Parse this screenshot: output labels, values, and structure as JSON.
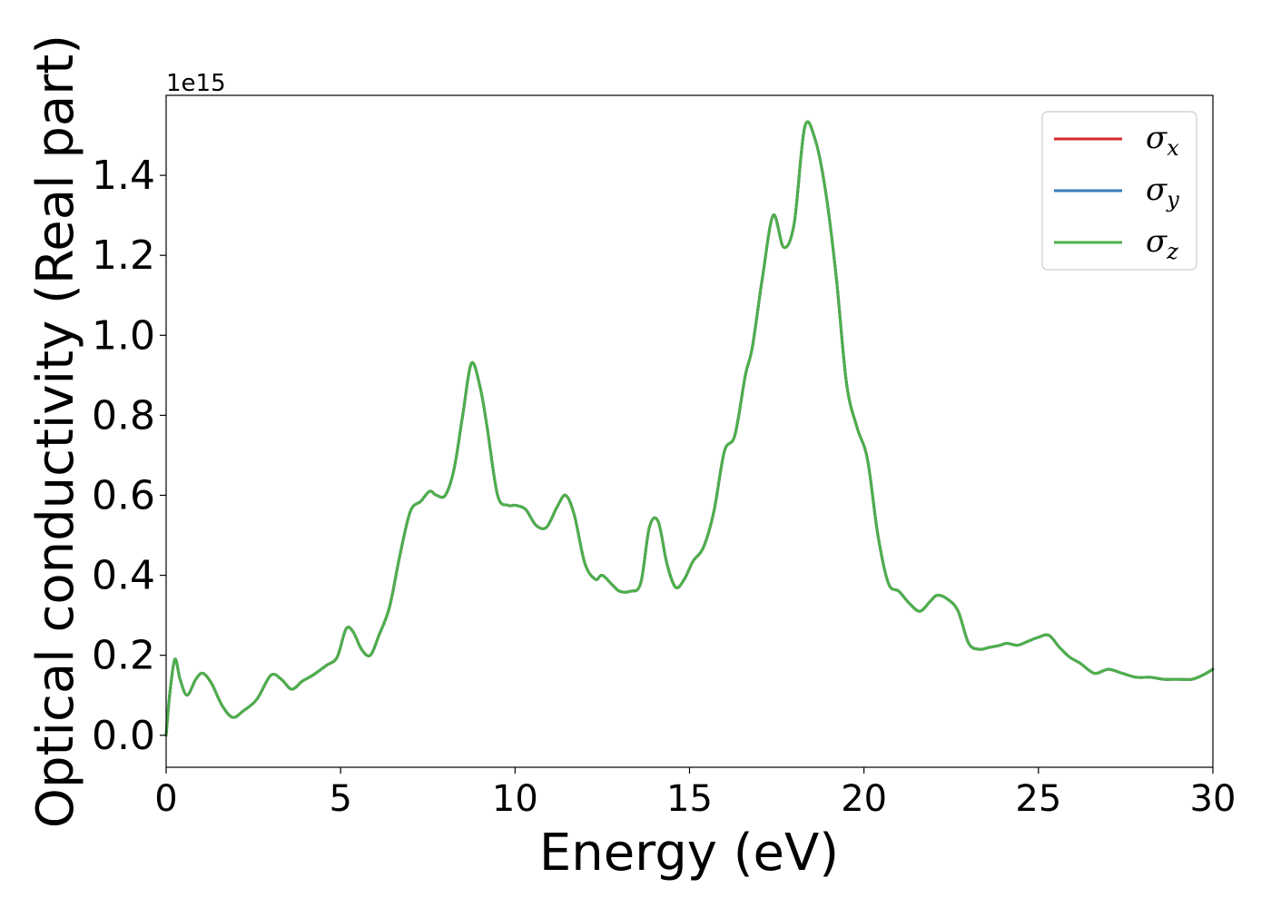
{
  "chart_data": {
    "type": "line",
    "title": "",
    "xlabel": "Energy (eV)",
    "ylabel": "Optical conductivity (Real part)",
    "offset_text": "1e15",
    "y_scale_factor": 1000000000000000.0,
    "xlim": [
      0,
      30
    ],
    "ylim": [
      -0.08,
      1.6
    ],
    "x_ticks": [
      0,
      5,
      10,
      15,
      20,
      25,
      30
    ],
    "x_tick_labels": [
      "0",
      "5",
      "10",
      "15",
      "20",
      "25",
      "30"
    ],
    "y_ticks": [
      0.0,
      0.2,
      0.4,
      0.6,
      0.8,
      1.0,
      1.2,
      1.4
    ],
    "y_tick_labels": [
      "0.0",
      "0.2",
      "0.4",
      "0.6",
      "0.8",
      "1.0",
      "1.2",
      "1.4"
    ],
    "grid": false,
    "legend_placement": "top-right",
    "x": [
      0,
      0.1,
      0.25,
      0.4,
      0.6,
      0.85,
      1.05,
      1.3,
      1.6,
      1.9,
      2.2,
      2.6,
      3.0,
      3.3,
      3.6,
      3.9,
      4.2,
      4.6,
      4.9,
      5.15,
      5.35,
      5.6,
      5.85,
      6.1,
      6.4,
      6.7,
      7.0,
      7.3,
      7.55,
      7.75,
      8.0,
      8.25,
      8.5,
      8.75,
      9.0,
      9.2,
      9.5,
      9.8,
      10.0,
      10.3,
      10.6,
      10.9,
      11.2,
      11.45,
      11.7,
      12.0,
      12.3,
      12.5,
      12.8,
      13.0,
      13.3,
      13.6,
      13.85,
      14.1,
      14.35,
      14.6,
      14.85,
      15.1,
      15.4,
      15.7,
      16.0,
      16.3,
      16.6,
      16.8,
      17.1,
      17.4,
      17.7,
      18.0,
      18.3,
      18.6,
      18.9,
      19.2,
      19.5,
      19.8,
      20.1,
      20.4,
      20.7,
      21.0,
      21.3,
      21.6,
      21.9,
      22.1,
      22.4,
      22.7,
      23.0,
      23.3,
      23.6,
      23.9,
      24.1,
      24.4,
      24.7,
      25.0,
      25.3,
      25.6,
      25.9,
      26.2,
      26.6,
      27.0,
      27.4,
      27.8,
      28.2,
      28.6,
      29.0,
      29.4,
      29.7,
      30.0
    ],
    "series": [
      {
        "name": "σ_x",
        "name_main": "σ",
        "name_sub": "x",
        "color": "#d62728",
        "values": [
          0.0,
          0.1,
          0.19,
          0.14,
          0.1,
          0.14,
          0.155,
          0.13,
          0.075,
          0.045,
          0.06,
          0.09,
          0.15,
          0.14,
          0.115,
          0.135,
          0.15,
          0.175,
          0.195,
          0.265,
          0.26,
          0.215,
          0.2,
          0.25,
          0.32,
          0.45,
          0.56,
          0.585,
          0.61,
          0.6,
          0.6,
          0.665,
          0.8,
          0.93,
          0.87,
          0.77,
          0.6,
          0.575,
          0.575,
          0.565,
          0.525,
          0.52,
          0.57,
          0.6,
          0.55,
          0.43,
          0.39,
          0.4,
          0.375,
          0.36,
          0.36,
          0.38,
          0.52,
          0.535,
          0.43,
          0.37,
          0.39,
          0.435,
          0.47,
          0.56,
          0.71,
          0.75,
          0.9,
          0.97,
          1.15,
          1.3,
          1.22,
          1.28,
          1.52,
          1.49,
          1.36,
          1.15,
          0.88,
          0.77,
          0.69,
          0.5,
          0.38,
          0.36,
          0.33,
          0.31,
          0.335,
          0.35,
          0.34,
          0.31,
          0.23,
          0.215,
          0.22,
          0.225,
          0.23,
          0.225,
          0.235,
          0.245,
          0.25,
          0.22,
          0.195,
          0.18,
          0.155,
          0.165,
          0.155,
          0.145,
          0.145,
          0.14,
          0.14,
          0.14,
          0.15,
          0.165
        ]
      },
      {
        "name": "σ_y",
        "name_main": "σ",
        "name_sub": "y",
        "color": "#377eb8",
        "values": [
          0.0,
          0.1,
          0.19,
          0.14,
          0.1,
          0.14,
          0.155,
          0.13,
          0.075,
          0.045,
          0.06,
          0.09,
          0.15,
          0.14,
          0.115,
          0.135,
          0.15,
          0.175,
          0.195,
          0.265,
          0.26,
          0.215,
          0.2,
          0.25,
          0.32,
          0.45,
          0.56,
          0.585,
          0.61,
          0.6,
          0.6,
          0.665,
          0.8,
          0.93,
          0.87,
          0.77,
          0.6,
          0.575,
          0.575,
          0.565,
          0.525,
          0.52,
          0.57,
          0.6,
          0.55,
          0.43,
          0.39,
          0.4,
          0.375,
          0.36,
          0.36,
          0.38,
          0.52,
          0.535,
          0.43,
          0.37,
          0.39,
          0.435,
          0.47,
          0.56,
          0.71,
          0.75,
          0.9,
          0.97,
          1.15,
          1.3,
          1.22,
          1.28,
          1.52,
          1.49,
          1.36,
          1.15,
          0.88,
          0.77,
          0.69,
          0.5,
          0.38,
          0.36,
          0.33,
          0.31,
          0.335,
          0.35,
          0.34,
          0.31,
          0.23,
          0.215,
          0.22,
          0.225,
          0.23,
          0.225,
          0.235,
          0.245,
          0.25,
          0.22,
          0.195,
          0.18,
          0.155,
          0.165,
          0.155,
          0.145,
          0.145,
          0.14,
          0.14,
          0.14,
          0.15,
          0.165
        ]
      },
      {
        "name": "σ_z",
        "name_main": "σ",
        "name_sub": "z",
        "color": "#4daf4a",
        "values": [
          0.0,
          0.1,
          0.19,
          0.14,
          0.1,
          0.14,
          0.155,
          0.13,
          0.075,
          0.045,
          0.06,
          0.09,
          0.15,
          0.14,
          0.115,
          0.135,
          0.15,
          0.175,
          0.195,
          0.265,
          0.26,
          0.215,
          0.2,
          0.25,
          0.32,
          0.45,
          0.56,
          0.585,
          0.61,
          0.6,
          0.6,
          0.665,
          0.8,
          0.93,
          0.87,
          0.77,
          0.6,
          0.575,
          0.575,
          0.565,
          0.525,
          0.52,
          0.57,
          0.6,
          0.55,
          0.43,
          0.39,
          0.4,
          0.375,
          0.36,
          0.36,
          0.38,
          0.52,
          0.535,
          0.43,
          0.37,
          0.39,
          0.435,
          0.47,
          0.56,
          0.71,
          0.75,
          0.9,
          0.97,
          1.15,
          1.3,
          1.22,
          1.28,
          1.52,
          1.49,
          1.36,
          1.15,
          0.88,
          0.77,
          0.69,
          0.5,
          0.38,
          0.36,
          0.33,
          0.31,
          0.335,
          0.35,
          0.34,
          0.31,
          0.23,
          0.215,
          0.22,
          0.225,
          0.23,
          0.225,
          0.235,
          0.245,
          0.25,
          0.22,
          0.195,
          0.18,
          0.155,
          0.165,
          0.155,
          0.145,
          0.145,
          0.14,
          0.14,
          0.14,
          0.15,
          0.165
        ]
      }
    ]
  }
}
